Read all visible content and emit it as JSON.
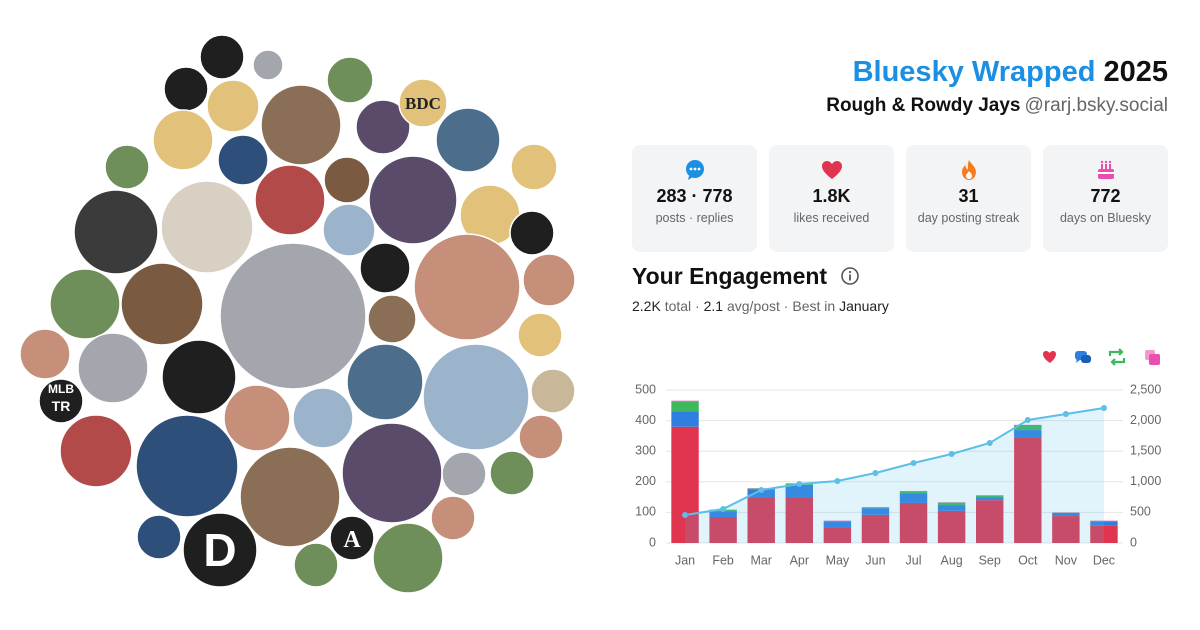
{
  "header": {
    "title": "Bluesky Wrapped",
    "year": "2025",
    "account": "Rough & Rowdy Jays",
    "handle": "@rarj.bsky.social"
  },
  "stats": [
    {
      "value": "283 · 778",
      "label": "posts · replies"
    },
    {
      "value": "1.8K",
      "label": "likes received"
    },
    {
      "value": "31",
      "label": "day posting streak"
    },
    {
      "value": "772",
      "label": "days on Bluesky"
    }
  ],
  "engagement": {
    "title": "Your Engagement",
    "total": "2.2K",
    "total_label": "total",
    "avg": "2.1",
    "avg_label": "avg/post",
    "best_label": "Best in",
    "best": "January"
  },
  "avatars": {
    "bdc": "BDC",
    "mlb": "MLB",
    "tr": "TR",
    "d": "D",
    "a": "A"
  },
  "chart_data": {
    "type": "bar",
    "stacked": true,
    "categories": [
      "Jan",
      "Feb",
      "Mar",
      "Apr",
      "May",
      "Jun",
      "Jul",
      "Aug",
      "Sep",
      "Oct",
      "Nov",
      "Dec"
    ],
    "series": [
      {
        "color": "#e0344f",
        "values": [
          380,
          85,
          150,
          150,
          52,
          92,
          131,
          105,
          140,
          346,
          88,
          56
        ]
      },
      {
        "color": "#2f7fe0",
        "values": [
          50,
          18,
          25,
          40,
          18,
          22,
          32,
          19,
          10,
          23,
          10,
          14
        ]
      },
      {
        "color": "#3db85c",
        "values": [
          33,
          5,
          3,
          3,
          2,
          2,
          6,
          8,
          5,
          15,
          1,
          2
        ]
      },
      {
        "color": "#e84fb0",
        "values": [
          2,
          1,
          1,
          2,
          1,
          1,
          1,
          1,
          1,
          2,
          1,
          1
        ]
      },
      {
        "type": "line",
        "axis": "y2",
        "color": "#5bbfe8",
        "values": [
          458,
          555,
          866,
          964,
          1013,
          1144,
          1307,
          1454,
          1634,
          2010,
          2108,
          2206
        ]
      }
    ],
    "ylim": [
      0,
      500
    ],
    "yticks": [
      0,
      100,
      200,
      300,
      400,
      500
    ],
    "y2lim": [
      0,
      2500
    ],
    "y2ticks": [
      0,
      500,
      {
        "value": 1000,
        "label": "1,000"
      },
      {
        "value": 1500,
        "label": "1,500"
      },
      {
        "value": 2000,
        "label": "2,000"
      },
      {
        "value": 2500,
        "label": "2,500"
      }
    ],
    "grid": true
  }
}
